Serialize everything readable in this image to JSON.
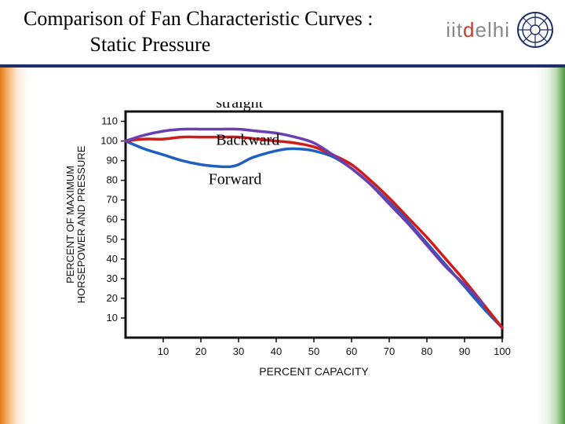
{
  "title_line1": "Comparison of Fan Characteristic Curves :",
  "title_line2": "Static Pressure",
  "logo_prefix": "iit",
  "logo_accent": "d",
  "logo_suffix": "elhi",
  "colors": {
    "background": "#ffffff",
    "title_rule": "#1f2f6b",
    "gradient_left": "#e47a1a",
    "gradient_right": "#4a9a3a",
    "axis": "#111111",
    "axis_text": "#111111",
    "straight_line": "#6a3fb0",
    "backward_line": "#d11c1c",
    "forward_line": "#1f5fbf",
    "label_text": "#000000"
  },
  "fonts": {
    "title_size_pt": 20,
    "axis_label_size_pt": 11,
    "tick_label_size_pt": 11,
    "series_label_size_pt": 16
  },
  "chart": {
    "type": "line",
    "x_axis_label": "PERCENT CAPACITY",
    "y_axis_label_line1": "PERCENT OF MAXIMUM",
    "y_axis_label_line2": "HORSEPOWER AND PRESSURE",
    "xlim": [
      0,
      100
    ],
    "ylim": [
      0,
      115
    ],
    "xtick_step": 10,
    "ytick_step": 10,
    "x_ticks": [
      10,
      20,
      30,
      40,
      50,
      60,
      70,
      80,
      90,
      100
    ],
    "y_ticks": [
      10,
      20,
      30,
      40,
      50,
      60,
      70,
      80,
      90,
      100,
      110
    ],
    "line_width": 3.5,
    "frame_width": 3,
    "grid": false,
    "series": {
      "straight": {
        "label": "straight",
        "color": "#6a3fb0",
        "points": [
          [
            0,
            100
          ],
          [
            5,
            103
          ],
          [
            10,
            105
          ],
          [
            15,
            106
          ],
          [
            20,
            106
          ],
          [
            25,
            106
          ],
          [
            30,
            106
          ],
          [
            35,
            105
          ],
          [
            40,
            104
          ],
          [
            45,
            102
          ],
          [
            50,
            99
          ],
          [
            55,
            93
          ],
          [
            60,
            86
          ],
          [
            65,
            78
          ],
          [
            70,
            68
          ],
          [
            75,
            58
          ],
          [
            80,
            47
          ],
          [
            85,
            36
          ],
          [
            90,
            27
          ],
          [
            93,
            21
          ],
          [
            95,
            17
          ]
        ]
      },
      "backward": {
        "label": "Backward",
        "color": "#d11c1c",
        "points": [
          [
            0,
            100
          ],
          [
            5,
            101
          ],
          [
            10,
            101
          ],
          [
            15,
            102
          ],
          [
            20,
            102
          ],
          [
            25,
            102
          ],
          [
            30,
            102
          ],
          [
            35,
            101
          ],
          [
            40,
            100
          ],
          [
            45,
            99
          ],
          [
            50,
            97
          ],
          [
            55,
            93
          ],
          [
            60,
            88
          ],
          [
            65,
            80
          ],
          [
            70,
            71
          ],
          [
            75,
            61
          ],
          [
            80,
            51
          ],
          [
            85,
            40
          ],
          [
            90,
            29
          ],
          [
            95,
            17
          ],
          [
            100,
            5
          ]
        ]
      },
      "forward": {
        "label": "Forward",
        "color": "#1f5fbf",
        "points": [
          [
            0,
            100
          ],
          [
            5,
            96
          ],
          [
            10,
            93
          ],
          [
            15,
            90
          ],
          [
            20,
            88
          ],
          [
            25,
            87
          ],
          [
            28,
            87
          ],
          [
            30,
            88
          ],
          [
            33,
            91
          ],
          [
            36,
            93
          ],
          [
            40,
            95
          ],
          [
            43,
            96
          ],
          [
            46,
            96
          ],
          [
            50,
            95
          ],
          [
            55,
            92
          ],
          [
            60,
            86
          ],
          [
            65,
            78
          ],
          [
            70,
            69
          ],
          [
            75,
            59
          ],
          [
            80,
            48
          ],
          [
            85,
            37
          ],
          [
            90,
            26
          ],
          [
            95,
            15
          ],
          [
            100,
            5
          ]
        ]
      }
    },
    "series_label_positions": {
      "straight": {
        "x": 24,
        "y": 117
      },
      "backward": {
        "x": 24,
        "y": 98
      },
      "forward": {
        "x": 22,
        "y": 78
      }
    }
  }
}
